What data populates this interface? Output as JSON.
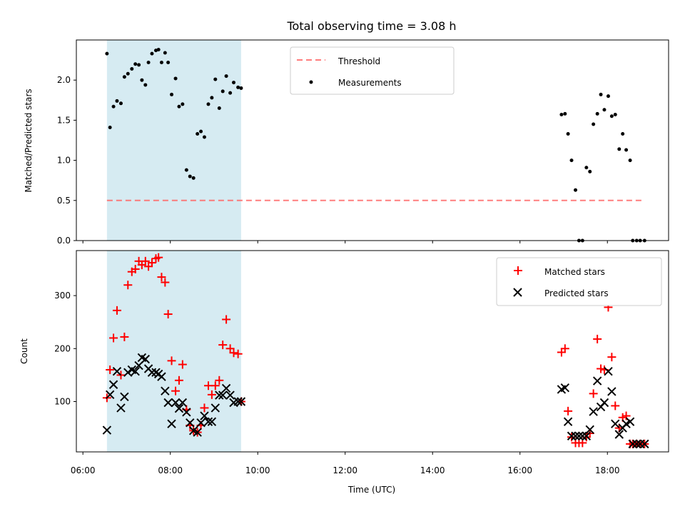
{
  "title": "Total observing time = 3.08 h",
  "colors": {
    "shade": "#add8e6",
    "threshold": "#ff6666",
    "matched": "#ff0000",
    "predicted": "#000000",
    "measurement": "#000000"
  },
  "chart_data": [
    {
      "type": "scatter",
      "panel": "top",
      "ylabel": "Matched/Predicted stars",
      "xlabel": "",
      "xlim": [
        5.85,
        19.4
      ],
      "ylim": [
        0.0,
        2.5
      ],
      "yticks": [
        "0.0",
        "0.5",
        "1.0",
        "1.5",
        "2.0"
      ],
      "ytick_values": [
        0.0,
        0.5,
        1.0,
        1.5,
        2.0
      ],
      "xticks_values": [
        6,
        8,
        10,
        12,
        14,
        16,
        18
      ],
      "shaded_span": [
        6.55,
        9.62
      ],
      "threshold": {
        "name": "Threshold",
        "value": 0.5,
        "x_range": [
          6.55,
          18.85
        ]
      },
      "legend": {
        "placement": "upper center",
        "entries": [
          "Threshold",
          "Measurements"
        ]
      },
      "series": [
        {
          "name": "Measurements",
          "x": [
            6.55,
            6.62,
            6.7,
            6.78,
            6.87,
            6.95,
            7.03,
            7.12,
            7.2,
            7.28,
            7.35,
            7.43,
            7.5,
            7.58,
            7.67,
            7.73,
            7.8,
            7.88,
            7.95,
            8.03,
            8.12,
            8.2,
            8.28,
            8.37,
            8.45,
            8.53,
            8.62,
            8.7,
            8.78,
            8.87,
            8.95,
            9.03,
            9.12,
            9.2,
            9.28,
            9.37,
            9.45,
            9.55,
            9.62,
            16.95,
            17.03,
            17.1,
            17.18,
            17.27,
            17.35,
            17.43,
            17.52,
            17.6,
            17.68,
            17.77,
            17.85,
            17.93,
            18.02,
            18.1,
            18.18,
            18.27,
            18.35,
            18.43,
            18.52,
            18.58,
            18.67,
            18.75,
            18.85
          ],
          "y": [
            2.33,
            1.41,
            1.67,
            1.74,
            1.71,
            2.04,
            2.08,
            2.14,
            2.2,
            2.19,
            2.0,
            1.94,
            2.22,
            2.33,
            2.37,
            2.38,
            2.22,
            2.34,
            2.22,
            1.82,
            2.02,
            1.67,
            1.7,
            0.88,
            0.8,
            0.78,
            1.33,
            1.36,
            1.29,
            1.7,
            1.78,
            2.01,
            1.65,
            1.86,
            2.05,
            1.84,
            1.97,
            1.91,
            1.9,
            1.57,
            1.58,
            1.33,
            1.0,
            0.63,
            0.0,
            0.0,
            0.91,
            0.86,
            1.45,
            1.58,
            1.82,
            1.63,
            1.8,
            1.55,
            1.57,
            1.14,
            1.33,
            1.13,
            1.0,
            0.0,
            0.0,
            0.0,
            0.0
          ]
        }
      ]
    },
    {
      "type": "scatter",
      "panel": "bottom",
      "ylabel": "Count",
      "xlabel": "Time (UTC)",
      "xlim": [
        5.85,
        19.4
      ],
      "ylim": [
        5,
        385
      ],
      "yticks": [
        "100",
        "200",
        "300"
      ],
      "ytick_values": [
        100,
        200,
        300
      ],
      "xticks": [
        "06:00",
        "08:00",
        "10:00",
        "12:00",
        "14:00",
        "16:00",
        "18:00"
      ],
      "xticks_values": [
        6,
        8,
        10,
        12,
        14,
        16,
        18
      ],
      "shaded_span": [
        6.55,
        9.62
      ],
      "legend": {
        "placement": "upper right",
        "entries": [
          "Matched stars",
          "Predicted stars"
        ]
      },
      "series": [
        {
          "name": "Matched stars",
          "marker": "+",
          "x": [
            6.55,
            6.62,
            6.7,
            6.78,
            6.87,
            6.95,
            7.03,
            7.12,
            7.2,
            7.28,
            7.35,
            7.43,
            7.5,
            7.58,
            7.67,
            7.73,
            7.8,
            7.88,
            7.95,
            8.03,
            8.12,
            8.2,
            8.28,
            8.37,
            8.45,
            8.53,
            8.62,
            8.7,
            8.78,
            8.87,
            8.95,
            9.03,
            9.12,
            9.2,
            9.28,
            9.37,
            9.45,
            9.55,
            9.62,
            16.95,
            17.03,
            17.1,
            17.18,
            17.27,
            17.35,
            17.43,
            17.52,
            17.6,
            17.68,
            17.77,
            17.85,
            17.93,
            18.02,
            18.1,
            18.18,
            18.27,
            18.35,
            18.43,
            18.52,
            18.58,
            18.67,
            18.75,
            18.85
          ],
          "y": [
            107,
            160,
            220,
            272,
            150,
            222,
            320,
            345,
            350,
            365,
            358,
            365,
            355,
            362,
            370,
            372,
            335,
            325,
            265,
            177,
            120,
            140,
            170,
            85,
            55,
            45,
            42,
            55,
            88,
            130,
            113,
            130,
            140,
            207,
            255,
            200,
            192,
            190,
            100,
            193,
            200,
            82,
            33,
            22,
            22,
            22,
            33,
            40,
            115,
            218,
            162,
            160,
            278,
            184,
            92,
            50,
            70,
            73,
            20,
            20,
            20,
            20,
            20
          ]
        },
        {
          "name": "Predicted stars",
          "marker": "x",
          "x": [
            6.55,
            6.62,
            6.7,
            6.78,
            6.87,
            6.95,
            7.03,
            7.12,
            7.2,
            7.28,
            7.35,
            7.43,
            7.5,
            7.58,
            7.67,
            7.73,
            7.8,
            7.88,
            7.95,
            8.03,
            8.12,
            8.2,
            8.28,
            8.37,
            8.45,
            8.53,
            8.62,
            8.7,
            8.78,
            8.87,
            8.95,
            9.03,
            9.12,
            9.2,
            9.28,
            9.37,
            9.45,
            9.55,
            9.62,
            16.95,
            17.03,
            17.1,
            17.18,
            17.27,
            17.35,
            17.43,
            17.52,
            17.6,
            17.68,
            17.77,
            17.85,
            17.93,
            18.02,
            18.1,
            18.18,
            18.27,
            18.35,
            18.43,
            18.52,
            18.58,
            18.67,
            18.75,
            18.85
          ],
          "y": [
            46,
            113,
            132,
            157,
            88,
            109,
            155,
            160,
            157,
            168,
            183,
            180,
            162,
            155,
            155,
            152,
            147,
            120,
            98,
            58,
            98,
            87,
            98,
            80,
            60,
            45,
            42,
            60,
            73,
            62,
            62,
            88,
            112,
            112,
            125,
            112,
            98,
            100,
            100,
            123,
            126,
            62,
            35,
            35,
            35,
            35,
            35,
            47,
            81,
            139,
            90,
            98,
            157,
            119,
            58,
            38,
            50,
            58,
            62,
            20,
            20,
            20,
            20
          ]
        }
      ]
    }
  ]
}
